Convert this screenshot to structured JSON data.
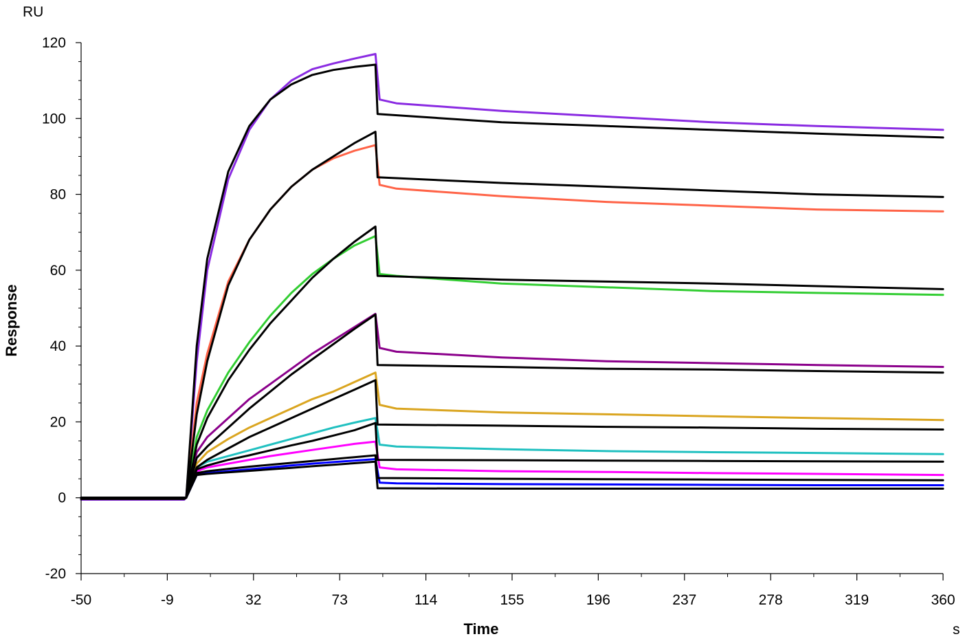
{
  "chart_data": {
    "type": "line",
    "title": "",
    "xlabel": "Time",
    "ylabel": "Response",
    "x_unit": "s",
    "y_unit": "RU",
    "xlim": [
      -50,
      360
    ],
    "ylim": [
      -20,
      120
    ],
    "x_ticks": [
      -50,
      -9,
      32,
      73,
      114,
      155,
      196,
      237,
      278,
      319,
      360
    ],
    "y_ticks": [
      -20,
      0,
      20,
      40,
      60,
      80,
      100,
      120
    ],
    "grid": false,
    "legend": "none",
    "series": [
      {
        "kind": "measured",
        "color": "#8a2be2",
        "x": [
          -50,
          -1,
          0,
          5,
          10,
          20,
          30,
          40,
          50,
          60,
          70,
          80,
          90,
          92,
          100,
          150,
          200,
          250,
          300,
          360
        ],
        "y": [
          -0.5,
          -0.5,
          0,
          36,
          60,
          84,
          97,
          105,
          110,
          113,
          114.5,
          115.8,
          117,
          105,
          104,
          102,
          100.5,
          99,
          98,
          97
        ]
      },
      {
        "kind": "measured",
        "color": "#ff6347",
        "x": [
          -50,
          -1,
          0,
          5,
          10,
          20,
          30,
          40,
          50,
          60,
          70,
          80,
          90,
          92,
          100,
          150,
          200,
          250,
          300,
          360
        ],
        "y": [
          -0.3,
          -0.3,
          0,
          25,
          38,
          57,
          68,
          76,
          82,
          86.5,
          89.5,
          91.5,
          93,
          82.5,
          81.5,
          79.5,
          78,
          77,
          76,
          75.5
        ]
      },
      {
        "kind": "measured",
        "color": "#32cd32",
        "x": [
          -50,
          -1,
          0,
          5,
          10,
          20,
          30,
          40,
          50,
          60,
          70,
          80,
          90,
          92,
          100,
          150,
          200,
          250,
          300,
          360
        ],
        "y": [
          0,
          0,
          0,
          16,
          23,
          33,
          41,
          48,
          54,
          59,
          63,
          66.5,
          69,
          59,
          58.5,
          56.5,
          55.5,
          54.5,
          54,
          53.5
        ]
      },
      {
        "kind": "measured",
        "color": "#8b008b",
        "x": [
          -50,
          -1,
          0,
          5,
          10,
          20,
          30,
          40,
          50,
          60,
          70,
          80,
          90,
          92,
          100,
          150,
          200,
          250,
          300,
          360
        ],
        "y": [
          0,
          0,
          0,
          12,
          16,
          21,
          26,
          30,
          34,
          38,
          41.5,
          45,
          48.5,
          39.5,
          38.5,
          37,
          36,
          35.5,
          35,
          34.5
        ]
      },
      {
        "kind": "measured",
        "color": "#daa520",
        "x": [
          -50,
          -1,
          0,
          5,
          10,
          20,
          30,
          40,
          50,
          60,
          70,
          80,
          90,
          92,
          100,
          150,
          200,
          250,
          300,
          360
        ],
        "y": [
          0,
          0,
          0,
          9,
          12,
          15.5,
          18.5,
          21,
          23.5,
          26,
          28,
          30.5,
          33,
          24.5,
          23.5,
          22.5,
          22,
          21.5,
          21,
          20.5
        ]
      },
      {
        "kind": "measured",
        "color": "#20c0c0",
        "x": [
          -50,
          -1,
          0,
          5,
          10,
          20,
          30,
          40,
          50,
          60,
          70,
          80,
          90,
          92,
          100,
          150,
          200,
          250,
          300,
          360
        ],
        "y": [
          0,
          0,
          0,
          8,
          9.5,
          11,
          12.5,
          14,
          15.5,
          17,
          18.5,
          19.8,
          21,
          14,
          13.5,
          12.8,
          12.3,
          12,
          11.8,
          11.5
        ]
      },
      {
        "kind": "measured",
        "color": "#ff00ff",
        "x": [
          -50,
          -1,
          0,
          5,
          10,
          20,
          30,
          40,
          50,
          60,
          70,
          80,
          90,
          92,
          100,
          150,
          200,
          250,
          300,
          360
        ],
        "y": [
          0,
          0,
          0,
          7,
          8,
          9,
          10,
          11,
          11.8,
          12.6,
          13.4,
          14.2,
          14.8,
          8,
          7.5,
          7,
          6.8,
          6.5,
          6.3,
          6
        ]
      },
      {
        "kind": "measured",
        "color": "#0000ff",
        "x": [
          -50,
          -1,
          0,
          5,
          10,
          20,
          30,
          40,
          50,
          60,
          70,
          80,
          90,
          92,
          100,
          150,
          200,
          250,
          300,
          360
        ],
        "y": [
          0,
          0,
          0,
          6,
          6.5,
          7,
          7.5,
          8,
          8.5,
          9,
          9.4,
          9.8,
          10.2,
          4,
          3.8,
          3.6,
          3.5,
          3.4,
          3.3,
          3.3
        ]
      },
      {
        "kind": "fit",
        "color": "#000000",
        "x": [
          -50,
          -1,
          0,
          5,
          10,
          20,
          30,
          40,
          50,
          60,
          70,
          80,
          90,
          91,
          150,
          200,
          250,
          300,
          360
        ],
        "y": [
          -0.3,
          -0.3,
          0,
          40,
          63,
          86,
          98,
          105,
          109,
          111.5,
          112.8,
          113.6,
          114.2,
          101.2,
          99,
          98,
          97,
          96,
          95
        ]
      },
      {
        "kind": "fit",
        "color": "#000000",
        "x": [
          -50,
          -1,
          0,
          5,
          10,
          20,
          30,
          40,
          50,
          60,
          70,
          80,
          90,
          91,
          150,
          200,
          250,
          300,
          360
        ],
        "y": [
          -0.3,
          -0.3,
          0,
          22,
          36,
          56,
          68,
          76,
          82,
          86.5,
          90,
          93.5,
          96.5,
          84.5,
          83,
          82,
          81,
          80,
          79.3
        ]
      },
      {
        "kind": "fit",
        "color": "#000000",
        "x": [
          -50,
          -1,
          0,
          5,
          10,
          20,
          30,
          40,
          50,
          60,
          70,
          80,
          90,
          91,
          150,
          200,
          250,
          300,
          360
        ],
        "y": [
          0,
          0,
          0,
          14,
          21,
          31,
          39,
          46,
          52,
          58,
          63,
          67.5,
          71.5,
          58.5,
          57.5,
          57,
          56.5,
          55.8,
          55
        ]
      },
      {
        "kind": "fit",
        "color": "#000000",
        "x": [
          -50,
          -1,
          0,
          5,
          10,
          20,
          30,
          40,
          50,
          60,
          70,
          80,
          90,
          91,
          150,
          200,
          250,
          300,
          360
        ],
        "y": [
          0,
          0,
          0,
          10.5,
          13.5,
          18.5,
          23.5,
          28,
          32.5,
          36.5,
          40.5,
          44.5,
          48.3,
          35,
          34.5,
          34,
          33.8,
          33.4,
          33
        ]
      },
      {
        "kind": "fit",
        "color": "#000000",
        "x": [
          -50,
          -1,
          0,
          5,
          10,
          20,
          30,
          40,
          50,
          60,
          70,
          80,
          90,
          91,
          150,
          200,
          250,
          300,
          360
        ],
        "y": [
          0,
          0,
          0,
          8,
          10,
          13,
          16,
          18.5,
          21,
          23.5,
          26,
          28.5,
          31,
          19.3,
          19,
          18.7,
          18.5,
          18.2,
          18
        ]
      },
      {
        "kind": "fit",
        "color": "#000000",
        "x": [
          -50,
          -1,
          0,
          5,
          10,
          20,
          30,
          40,
          50,
          60,
          70,
          80,
          90,
          91,
          150,
          200,
          250,
          300,
          360
        ],
        "y": [
          0,
          0,
          0,
          7.5,
          8.5,
          10,
          11.2,
          12.5,
          13.8,
          15,
          16.4,
          17.8,
          19.7,
          10,
          9.9,
          9.8,
          9.7,
          9.6,
          9.5
        ]
      },
      {
        "kind": "fit",
        "color": "#000000",
        "x": [
          -50,
          -1,
          0,
          5,
          10,
          20,
          30,
          40,
          50,
          60,
          70,
          80,
          90,
          91,
          150,
          200,
          250,
          300,
          360
        ],
        "y": [
          0,
          0,
          0,
          6.5,
          7,
          7.6,
          8.2,
          8.7,
          9.2,
          9.7,
          10.2,
          10.7,
          11.2,
          5.2,
          5,
          4.9,
          4.8,
          4.7,
          4.6
        ]
      },
      {
        "kind": "fit",
        "color": "#000000",
        "x": [
          -50,
          -1,
          0,
          5,
          10,
          20,
          30,
          40,
          50,
          60,
          70,
          80,
          90,
          91,
          150,
          200,
          250,
          300,
          360
        ],
        "y": [
          0,
          0,
          0,
          6,
          6.3,
          6.7,
          7.1,
          7.5,
          7.9,
          8.3,
          8.7,
          9.1,
          9.5,
          2.5,
          2.4,
          2.4,
          2.4,
          2.4,
          2.4
        ]
      }
    ]
  }
}
